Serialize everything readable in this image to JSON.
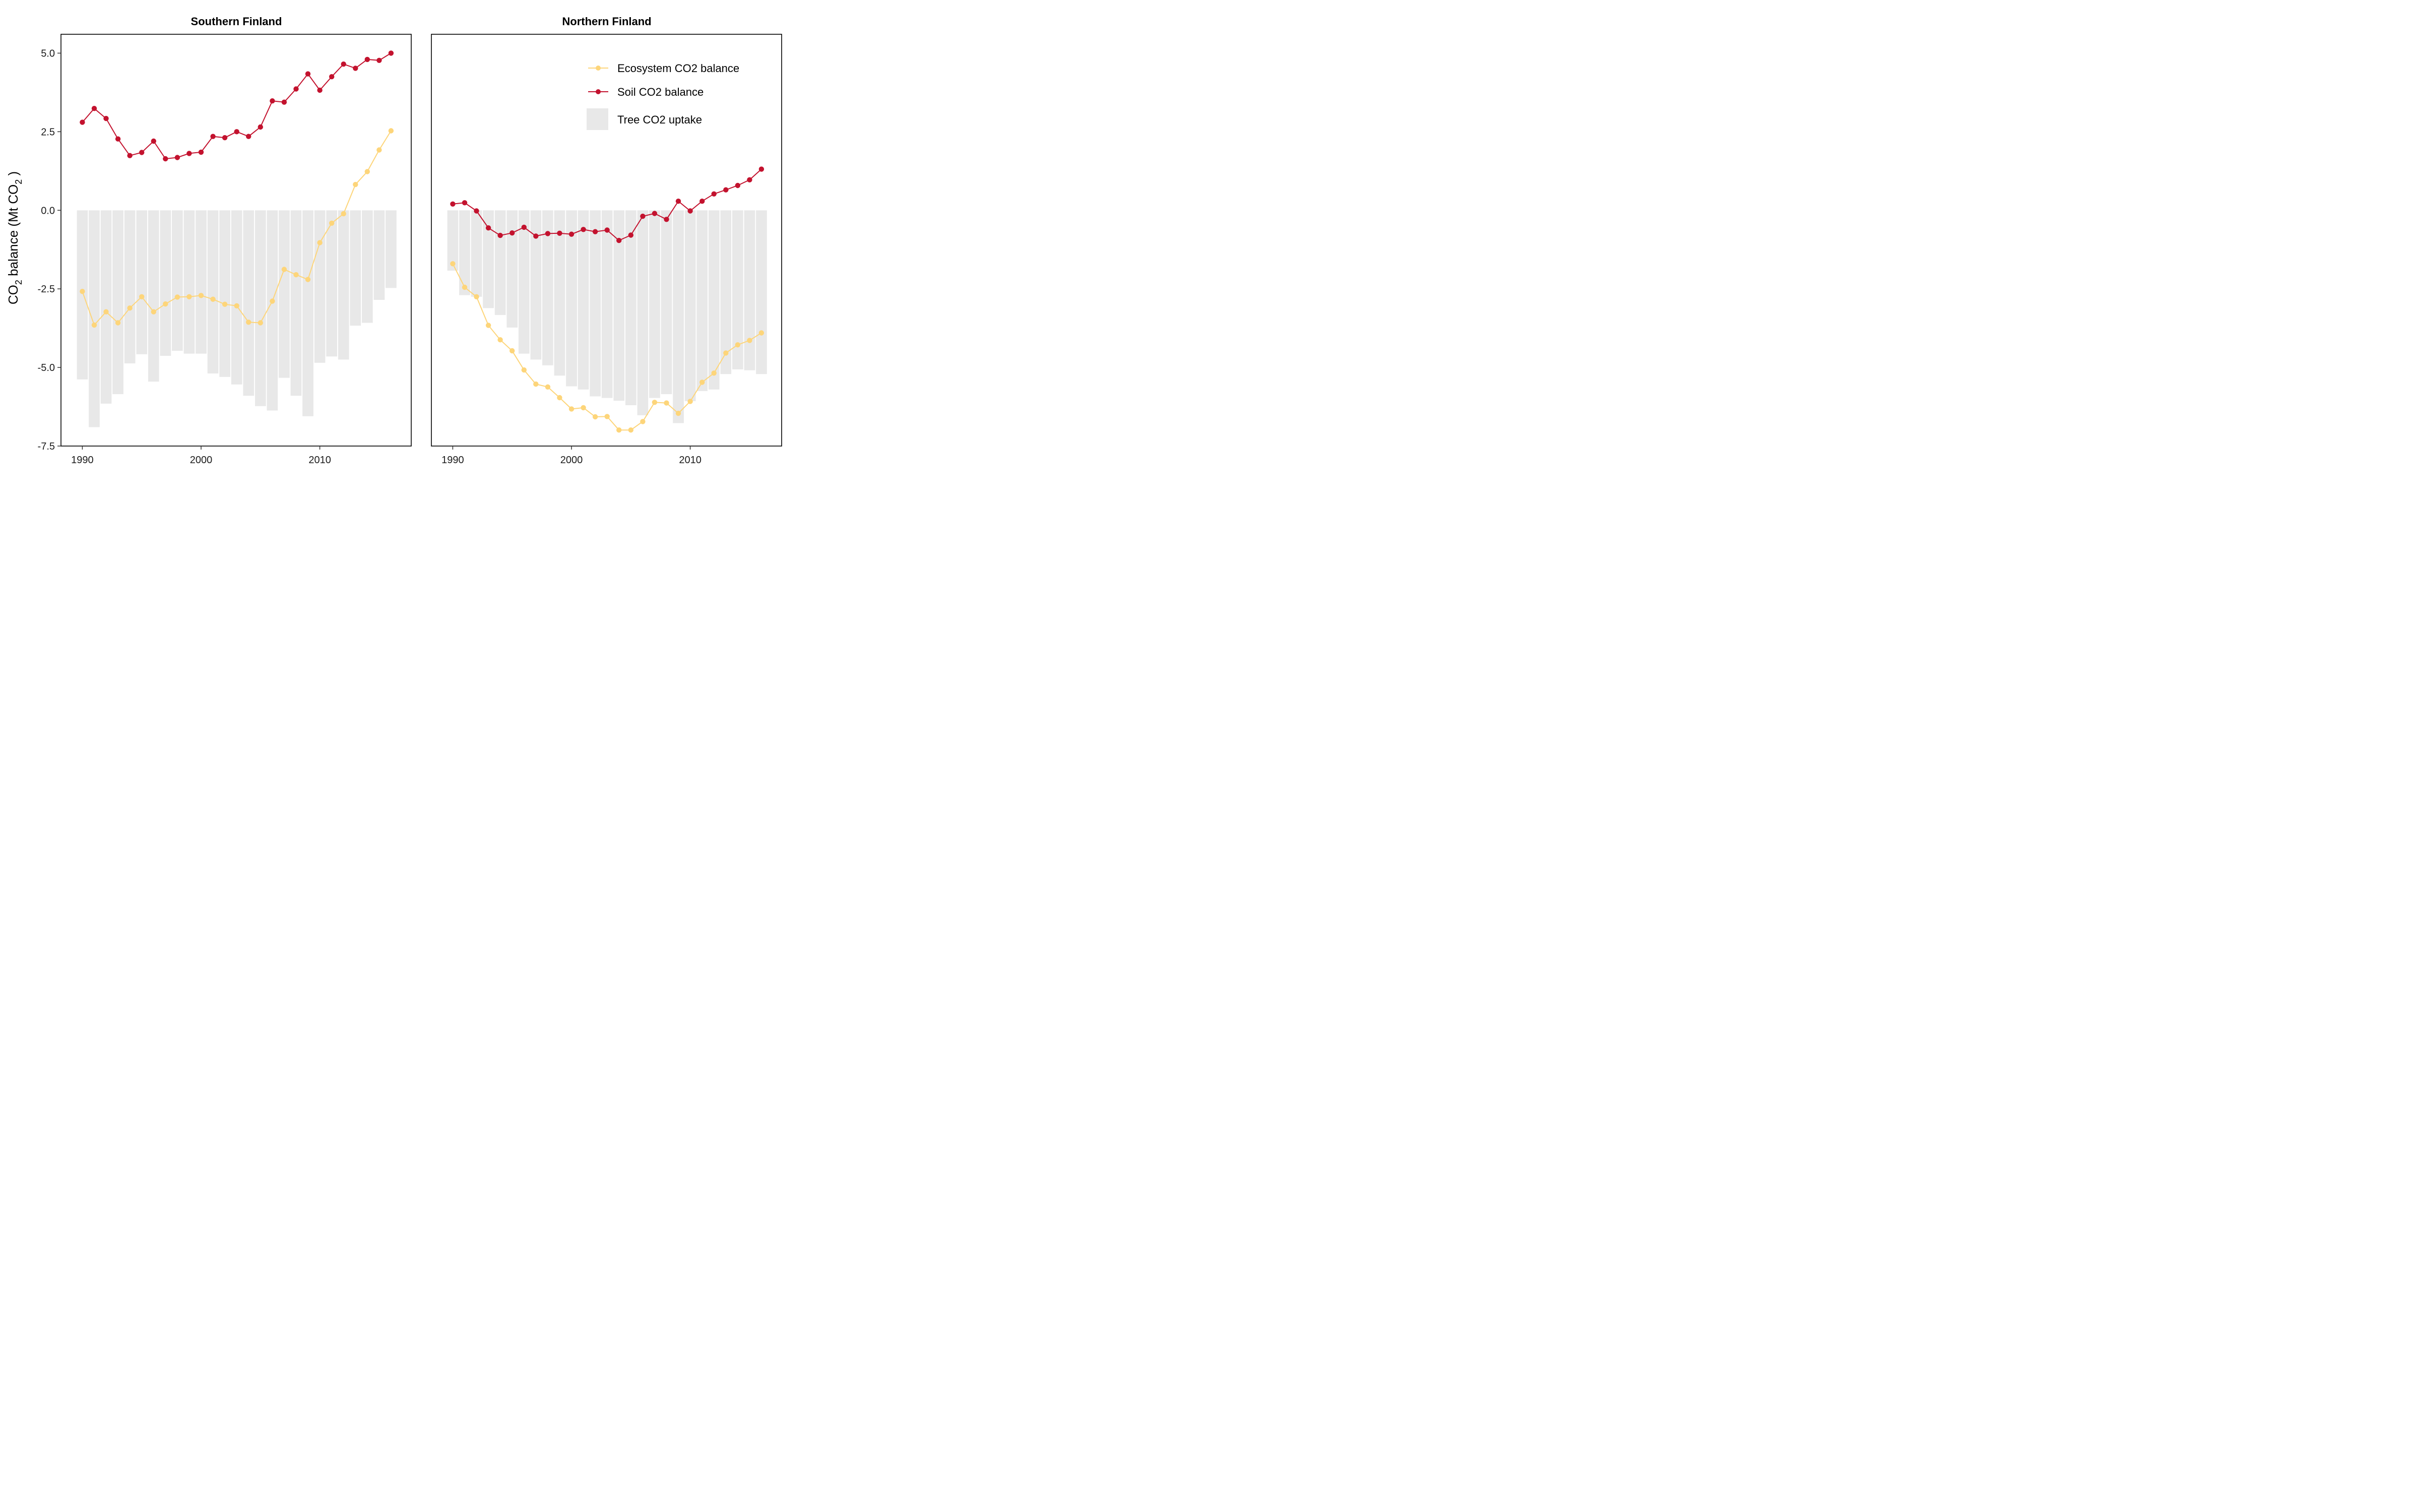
{
  "ylabel": {
    "main": "CO",
    "sub1": "2",
    "mid": " balance (Mt  CO",
    "sub2": "2",
    "end": " )"
  },
  "legend": [
    {
      "name": "Ecosystem CO2 balance",
      "color": "#fdd57a",
      "kind": "line"
    },
    {
      "name": "Soil CO2 balance",
      "color": "#c3122e",
      "kind": "line"
    },
    {
      "name": "Tree CO2 uptake",
      "color": "#e8e8e8",
      "kind": "bar"
    }
  ],
  "chart_data": [
    {
      "type": "bar+line",
      "title": "Southern Finland",
      "xlim": [
        1988.2,
        2017.7
      ],
      "ylim": [
        -7.5,
        5.6
      ],
      "xticks": [
        1990,
        2000,
        2010
      ],
      "yticks": [
        5.0,
        2.5,
        0.0,
        -2.5,
        -5.0,
        -7.5
      ],
      "ytick_labels": [
        "5.0",
        "2.5",
        "0.0",
        "-2.5",
        "-5.0",
        "-7.5"
      ],
      "x": [
        1990,
        1991,
        1992,
        1993,
        1994,
        1995,
        1996,
        1997,
        1998,
        1999,
        2000,
        2001,
        2002,
        2003,
        2004,
        2005,
        2006,
        2007,
        2008,
        2009,
        2010,
        2011,
        2012,
        2013,
        2014,
        2015,
        2016
      ],
      "series": [
        {
          "name": "Tree CO2 uptake",
          "color": "#e8e8e8",
          "values": [
            -5.38,
            -6.9,
            -6.15,
            -5.85,
            -4.87,
            -4.58,
            -5.45,
            -4.63,
            -4.47,
            -4.56,
            -4.56,
            -5.19,
            -5.3,
            -5.54,
            -5.9,
            -6.23,
            -6.37,
            -5.33,
            -5.9,
            -6.55,
            -4.85,
            -4.65,
            -4.75,
            -3.67,
            -3.58,
            -2.85,
            -2.47
          ]
        },
        {
          "name": "Ecosystem CO2 balance",
          "color": "#fdd57a",
          "values": [
            -2.58,
            -3.65,
            -3.23,
            -3.58,
            -3.11,
            -2.75,
            -3.23,
            -2.98,
            -2.76,
            -2.75,
            -2.71,
            -2.83,
            -2.99,
            -3.04,
            -3.56,
            -3.58,
            -2.89,
            -1.88,
            -2.05,
            -2.2,
            -1.03,
            -0.41,
            -0.11,
            0.82,
            1.23,
            1.92,
            2.53
          ]
        },
        {
          "name": "Soil CO2 balance",
          "color": "#c3122e",
          "values": [
            2.8,
            3.24,
            2.92,
            2.27,
            1.74,
            1.84,
            2.2,
            1.64,
            1.68,
            1.81,
            1.85,
            2.35,
            2.31,
            2.5,
            2.35,
            2.65,
            3.48,
            3.44,
            3.86,
            4.34,
            3.82,
            4.25,
            4.65,
            4.52,
            4.8,
            4.77,
            5.0
          ]
        }
      ]
    },
    {
      "type": "bar+line",
      "title": "Northern Finland",
      "xlim": [
        1988.2,
        2017.7
      ],
      "ylim": [
        -7.5,
        5.6
      ],
      "xticks": [
        1990,
        2000,
        2010
      ],
      "yticks": [
        5.0,
        2.5,
        0.0,
        -2.5,
        -5.0,
        -7.5
      ],
      "ytick_labels": [
        "5.0",
        "2.5",
        "0.0",
        "-2.5",
        "-5.0",
        "-7.5"
      ],
      "x": [
        1990,
        1991,
        1992,
        1993,
        1994,
        1995,
        1996,
        1997,
        1998,
        1999,
        2000,
        2001,
        2002,
        2003,
        2004,
        2005,
        2006,
        2007,
        2008,
        2009,
        2010,
        2011,
        2012,
        2013,
        2014,
        2015,
        2016
      ],
      "series": [
        {
          "name": "Tree CO2 uptake",
          "color": "#e8e8e8",
          "values": [
            -1.92,
            -2.7,
            -2.75,
            -3.11,
            -3.33,
            -3.73,
            -4.56,
            -4.75,
            -4.93,
            -5.26,
            -5.6,
            -5.7,
            -5.92,
            -5.97,
            -6.06,
            -6.2,
            -6.52,
            -5.97,
            -5.85,
            -6.77,
            -6.07,
            -5.75,
            -5.7,
            -5.21,
            -5.06,
            -5.09,
            -5.21
          ]
        },
        {
          "name": "Ecosystem CO2 balance",
          "color": "#fdd57a",
          "values": [
            -1.7,
            -2.45,
            -2.75,
            -3.66,
            -4.12,
            -4.47,
            -5.08,
            -5.53,
            -5.62,
            -5.96,
            -6.32,
            -6.28,
            -6.57,
            -6.56,
            -6.99,
            -6.99,
            -6.72,
            -6.11,
            -6.13,
            -6.46,
            -6.08,
            -5.47,
            -5.18,
            -4.54,
            -4.28,
            -4.14,
            -3.9
          ]
        },
        {
          "name": "Soil CO2 balance",
          "color": "#c3122e",
          "values": [
            0.2,
            0.24,
            -0.02,
            -0.56,
            -0.8,
            -0.72,
            -0.54,
            -0.82,
            -0.74,
            -0.73,
            -0.76,
            -0.61,
            -0.68,
            -0.63,
            -0.96,
            -0.79,
            -0.19,
            -0.1,
            -0.29,
            0.29,
            -0.02,
            0.29,
            0.52,
            0.65,
            0.79,
            0.97,
            1.31
          ]
        }
      ]
    }
  ]
}
